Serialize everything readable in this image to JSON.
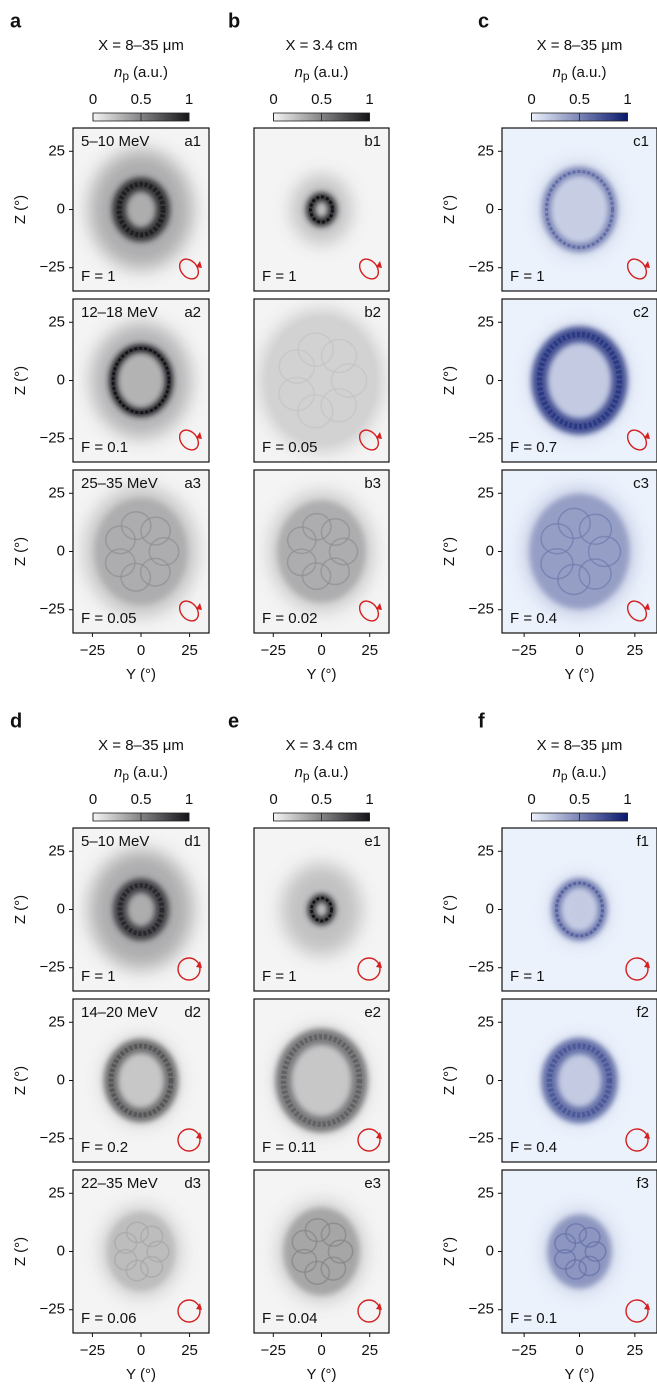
{
  "axes": {
    "lim": [
      -35,
      35
    ],
    "ticks": [
      {
        "value": -25,
        "label": "−25"
      },
      0,
      25
    ],
    "x_label": "Y (°)",
    "y_label": "Z (°)"
  },
  "colorbar": {
    "lim": [
      0,
      1
    ],
    "ticks": [
      0,
      0.5,
      1
    ],
    "label": {
      "symbol": "n",
      "subscript": "p",
      "unit": "(a.u.)"
    }
  },
  "groups": [
    {
      "letter": "a",
      "position": "X = 8–35 μm",
      "colormap": "gray",
      "show_y_axis": true,
      "panels": [
        {
          "id": "a1",
          "energy": "5–10 MeV",
          "F": "F = 1"
        },
        {
          "id": "a2",
          "energy": "12–18 MeV",
          "F": "F = 0.1"
        },
        {
          "id": "a3",
          "energy": "25–35 MeV",
          "F": "F = 0.05"
        }
      ]
    },
    {
      "letter": "b",
      "position": "X = 3.4 cm",
      "colormap": "gray",
      "show_y_axis": false,
      "panels": [
        {
          "id": "b1",
          "F": "F = 1"
        },
        {
          "id": "b2",
          "F": "F = 0.05"
        },
        {
          "id": "b3",
          "F": "F = 0.02"
        }
      ]
    },
    {
      "letter": "c",
      "position": "X = 8–35 μm",
      "colormap": "blue",
      "show_y_axis": true,
      "panels": [
        {
          "id": "c1",
          "F": "F = 1"
        },
        {
          "id": "c2",
          "F": "F = 0.7"
        },
        {
          "id": "c3",
          "F": "F = 0.4"
        }
      ]
    },
    {
      "letter": "d",
      "position": "X = 8–35 μm",
      "colormap": "gray",
      "show_y_axis": true,
      "panels": [
        {
          "id": "d1",
          "energy": "5–10 MeV",
          "F": "F = 1"
        },
        {
          "id": "d2",
          "energy": "14–20 MeV",
          "F": "F = 0.2"
        },
        {
          "id": "d3",
          "energy": "22–35 MeV",
          "F": "F = 0.06"
        }
      ]
    },
    {
      "letter": "e",
      "position": "X = 3.4 cm",
      "colormap": "gray",
      "show_y_axis": false,
      "panels": [
        {
          "id": "e1",
          "F": "F = 1"
        },
        {
          "id": "e2",
          "F": "F = 0.11"
        },
        {
          "id": "e3",
          "F": "F = 0.04"
        }
      ]
    },
    {
      "letter": "f",
      "position": "X = 8–35 μm",
      "colormap": "blue",
      "show_y_axis": true,
      "panels": [
        {
          "id": "f1",
          "F": "F = 1"
        },
        {
          "id": "f2",
          "F": "F = 0.4"
        },
        {
          "id": "f3",
          "F": "F = 0.1"
        }
      ]
    }
  ]
}
